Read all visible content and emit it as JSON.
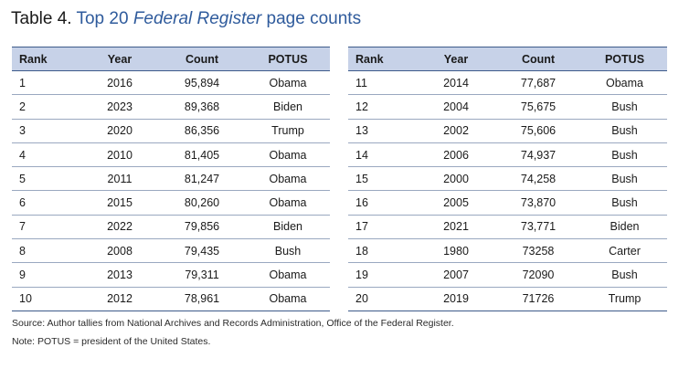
{
  "title": {
    "label": "Table 4.",
    "pre": "Top 20",
    "italic": "Federal Register",
    "post": "page counts"
  },
  "headers": [
    "Rank",
    "Year",
    "Count",
    "POTUS"
  ],
  "rows_left": [
    {
      "rank": "1",
      "year": "2016",
      "count": "95,894",
      "potus": "Obama"
    },
    {
      "rank": "2",
      "year": "2023",
      "count": "89,368",
      "potus": "Biden"
    },
    {
      "rank": "3",
      "year": "2020",
      "count": "86,356",
      "potus": "Trump"
    },
    {
      "rank": "4",
      "year": "2010",
      "count": "81,405",
      "potus": "Obama"
    },
    {
      "rank": "5",
      "year": "2011",
      "count": "81,247",
      "potus": "Obama"
    },
    {
      "rank": "6",
      "year": "2015",
      "count": "80,260",
      "potus": "Obama"
    },
    {
      "rank": "7",
      "year": "2022",
      "count": "79,856",
      "potus": "Biden"
    },
    {
      "rank": "8",
      "year": "2008",
      "count": "79,435",
      "potus": "Bush"
    },
    {
      "rank": "9",
      "year": "2013",
      "count": "79,311",
      "potus": "Obama"
    },
    {
      "rank": "10",
      "year": "2012",
      "count": "78,961",
      "potus": "Obama"
    }
  ],
  "rows_right": [
    {
      "rank": "11",
      "year": "2014",
      "count": "77,687",
      "potus": "Obama"
    },
    {
      "rank": "12",
      "year": "2004",
      "count": "75,675",
      "potus": "Bush"
    },
    {
      "rank": "13",
      "year": "2002",
      "count": "75,606",
      "potus": "Bush"
    },
    {
      "rank": "14",
      "year": "2006",
      "count": "74,937",
      "potus": "Bush"
    },
    {
      "rank": "15",
      "year": "2000",
      "count": "74,258",
      "potus": "Bush"
    },
    {
      "rank": "16",
      "year": "2005",
      "count": "73,870",
      "potus": "Bush"
    },
    {
      "rank": "17",
      "year": "2021",
      "count": "73,771",
      "potus": "Biden"
    },
    {
      "rank": "18",
      "year": "1980",
      "count": "73258",
      "potus": "Carter"
    },
    {
      "rank": "19",
      "year": "2007",
      "count": "72090",
      "potus": "Bush"
    },
    {
      "rank": "20",
      "year": "2019",
      "count": "71726",
      "potus": "Trump"
    }
  ],
  "source": "Source: Author tallies from National Archives and Records Administration, Office of the Federal Register.",
  "note": "Note: POTUS = president of the United States.",
  "colors": {
    "title_accent": "#2f5b9c",
    "header_fill": "#c7d2e8",
    "rule": "#3d5a8a"
  }
}
